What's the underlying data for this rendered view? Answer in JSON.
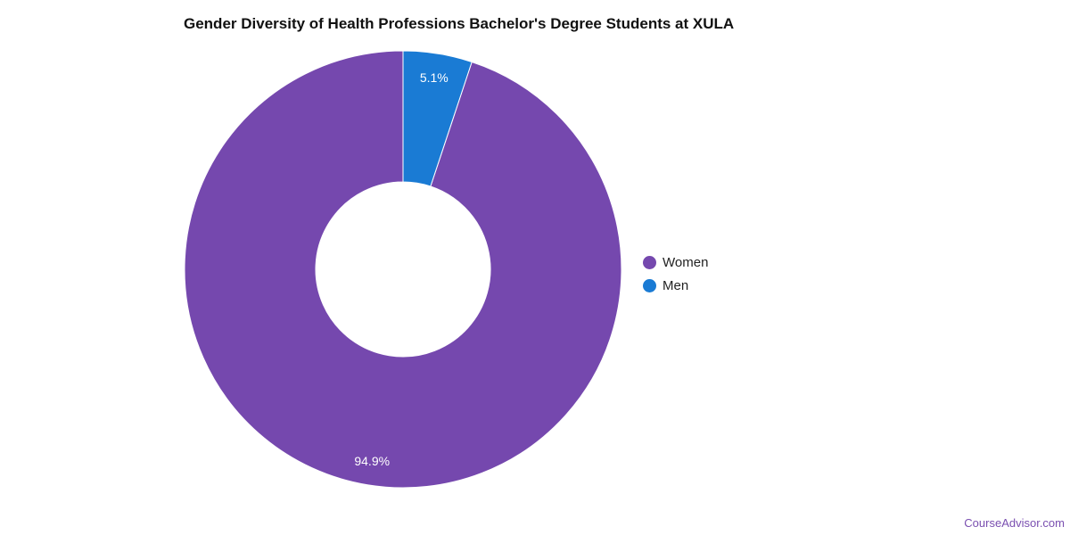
{
  "chart_data": {
    "type": "pie",
    "variant": "donut",
    "title": "Gender Diversity of Health Professions Bachelor's Degree Students at XULA",
    "slices": [
      {
        "name": "Women",
        "value": 94.9,
        "label": "94.9%",
        "color": "#7548ae"
      },
      {
        "name": "Men",
        "value": 5.1,
        "label": "5.1%",
        "color": "#1a7bd4"
      }
    ],
    "legend_position": "right"
  },
  "footer": {
    "source": "CourseAdvisor.com"
  }
}
